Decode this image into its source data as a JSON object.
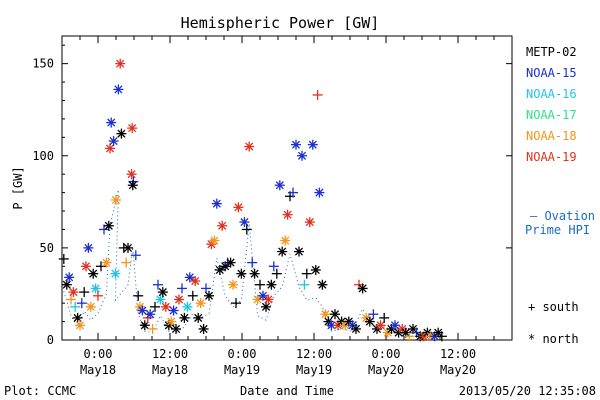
{
  "chart_data": {
    "type": "scatter",
    "title": "Hemispheric Power [GW]",
    "ylabel": "P [GW]",
    "xlabel": "Date and Time",
    "x_unit": "hours since 2013-05-17 00:00 UT",
    "xlim": [
      18,
      93
    ],
    "ylim": [
      0,
      165
    ],
    "yticks": [
      0,
      50,
      100,
      150
    ],
    "xticks": [
      {
        "x": 24,
        "line1": "0:00",
        "line2": "May18"
      },
      {
        "x": 36,
        "line1": "12:00",
        "line2": "May18"
      },
      {
        "x": 48,
        "line1": "0:00",
        "line2": "May19"
      },
      {
        "x": 60,
        "line1": "12:00",
        "line2": "May19"
      },
      {
        "x": 72,
        "line1": "0:00",
        "line2": "May20"
      },
      {
        "x": 84,
        "line1": "12:00",
        "line2": "May20"
      }
    ],
    "legend_position": "right",
    "series": [
      {
        "name": "METP-02",
        "color": "#000000"
      },
      {
        "name": "NOAA-15",
        "color": "#1a2fd0"
      },
      {
        "name": "NOAA-16",
        "color": "#22c4e6"
      },
      {
        "name": "NOAA-17",
        "color": "#2ee08a"
      },
      {
        "name": "NOAA-18",
        "color": "#f0961e"
      },
      {
        "name": "NOAA-19",
        "color": "#e0321e"
      }
    ],
    "ovation": {
      "label1": "— Ovation",
      "label2": "Prime HPI",
      "color": "#1a6cc8"
    },
    "markers": {
      "south": "+ south",
      "north": "* north"
    },
    "points": [
      {
        "s": 0,
        "m": "+",
        "x": 18.3,
        "y": 44
      },
      {
        "s": 0,
        "m": "*",
        "x": 18.8,
        "y": 30
      },
      {
        "s": 1,
        "m": "*",
        "x": 19.2,
        "y": 34
      },
      {
        "s": 4,
        "m": "+",
        "x": 19.5,
        "y": 22
      },
      {
        "s": 5,
        "m": "*",
        "x": 19.9,
        "y": 26
      },
      {
        "s": 2,
        "m": "+",
        "x": 20.2,
        "y": 18
      },
      {
        "s": 0,
        "m": "*",
        "x": 20.6,
        "y": 12
      },
      {
        "s": 4,
        "m": "*",
        "x": 21.0,
        "y": 8
      },
      {
        "s": 1,
        "m": "+",
        "x": 21.3,
        "y": 20
      },
      {
        "s": 0,
        "m": "+",
        "x": 21.7,
        "y": 26
      },
      {
        "s": 5,
        "m": "*",
        "x": 22.0,
        "y": 40
      },
      {
        "s": 1,
        "m": "*",
        "x": 22.4,
        "y": 50
      },
      {
        "s": 4,
        "m": "*",
        "x": 22.8,
        "y": 18
      },
      {
        "s": 0,
        "m": "*",
        "x": 23.2,
        "y": 36
      },
      {
        "s": 2,
        "m": "*",
        "x": 23.6,
        "y": 28
      },
      {
        "s": 5,
        "m": "+",
        "x": 24.0,
        "y": 24
      },
      {
        "s": 0,
        "m": "+",
        "x": 24.5,
        "y": 40
      },
      {
        "s": 1,
        "m": "+",
        "x": 25.0,
        "y": 60
      },
      {
        "s": 4,
        "m": "*",
        "x": 25.4,
        "y": 42
      },
      {
        "s": 0,
        "m": "*",
        "x": 25.8,
        "y": 62
      },
      {
        "s": 1,
        "m": "*",
        "x": 26.2,
        "y": 118
      },
      {
        "s": 5,
        "m": "*",
        "x": 26.0,
        "y": 104
      },
      {
        "s": 1,
        "m": "*",
        "x": 26.6,
        "y": 108
      },
      {
        "s": 4,
        "m": "*",
        "x": 27.0,
        "y": 76
      },
      {
        "s": 1,
        "m": "*",
        "x": 27.4,
        "y": 136
      },
      {
        "s": 5,
        "m": "*",
        "x": 27.7,
        "y": 150
      },
      {
        "s": 0,
        "m": "*",
        "x": 27.9,
        "y": 112
      },
      {
        "s": 2,
        "m": "*",
        "x": 26.9,
        "y": 36
      },
      {
        "s": 0,
        "m": "+",
        "x": 28.3,
        "y": 50
      },
      {
        "s": 4,
        "m": "+",
        "x": 28.7,
        "y": 42
      },
      {
        "s": 0,
        "m": "*",
        "x": 29.0,
        "y": 50
      },
      {
        "s": 5,
        "m": "*",
        "x": 29.6,
        "y": 90
      },
      {
        "s": 1,
        "m": "+",
        "x": 29.9,
        "y": 86
      },
      {
        "s": 0,
        "m": "*",
        "x": 29.8,
        "y": 84
      },
      {
        "s": 5,
        "m": "*",
        "x": 29.7,
        "y": 115
      },
      {
        "s": 1,
        "m": "+",
        "x": 30.3,
        "y": 46
      },
      {
        "s": 0,
        "m": "+",
        "x": 30.7,
        "y": 24
      },
      {
        "s": 4,
        "m": "*",
        "x": 31.0,
        "y": 18
      },
      {
        "s": 1,
        "m": "*",
        "x": 31.4,
        "y": 16
      },
      {
        "s": 0,
        "m": "*",
        "x": 31.8,
        "y": 8
      },
      {
        "s": 5,
        "m": "+",
        "x": 32.3,
        "y": 12
      },
      {
        "s": 1,
        "m": "*",
        "x": 32.7,
        "y": 14
      },
      {
        "s": 4,
        "m": "+",
        "x": 33.1,
        "y": 6
      },
      {
        "s": 0,
        "m": "+",
        "x": 33.5,
        "y": 18
      },
      {
        "s": 1,
        "m": "+",
        "x": 34.0,
        "y": 30
      },
      {
        "s": 2,
        "m": "*",
        "x": 34.4,
        "y": 22
      },
      {
        "s": 0,
        "m": "*",
        "x": 34.8,
        "y": 26
      },
      {
        "s": 5,
        "m": "*",
        "x": 35.3,
        "y": 18
      },
      {
        "s": 0,
        "m": "*",
        "x": 35.8,
        "y": 8
      },
      {
        "s": 4,
        "m": "*",
        "x": 36.2,
        "y": 10
      },
      {
        "s": 1,
        "m": "*",
        "x": 36.6,
        "y": 16
      },
      {
        "s": 0,
        "m": "*",
        "x": 37.0,
        "y": 6
      },
      {
        "s": 5,
        "m": "*",
        "x": 37.5,
        "y": 22
      },
      {
        "s": 1,
        "m": "+",
        "x": 38.0,
        "y": 28
      },
      {
        "s": 0,
        "m": "*",
        "x": 38.4,
        "y": 12
      },
      {
        "s": 2,
        "m": "*",
        "x": 38.9,
        "y": 18
      },
      {
        "s": 1,
        "m": "*",
        "x": 39.3,
        "y": 34
      },
      {
        "s": 0,
        "m": "+",
        "x": 39.8,
        "y": 24
      },
      {
        "s": 5,
        "m": "*",
        "x": 40.2,
        "y": 32
      },
      {
        "s": 0,
        "m": "*",
        "x": 40.7,
        "y": 12
      },
      {
        "s": 4,
        "m": "*",
        "x": 41.1,
        "y": 20
      },
      {
        "s": 0,
        "m": "*",
        "x": 41.6,
        "y": 6
      },
      {
        "s": 1,
        "m": "+",
        "x": 42.0,
        "y": 28
      },
      {
        "s": 0,
        "m": "*",
        "x": 42.5,
        "y": 24
      },
      {
        "s": 5,
        "m": "*",
        "x": 42.9,
        "y": 52
      },
      {
        "s": 4,
        "m": "*",
        "x": 43.4,
        "y": 54
      },
      {
        "s": 1,
        "m": "*",
        "x": 43.8,
        "y": 74
      },
      {
        "s": 0,
        "m": "*",
        "x": 44.3,
        "y": 38
      },
      {
        "s": 5,
        "m": "*",
        "x": 44.7,
        "y": 62
      },
      {
        "s": 0,
        "m": "*",
        "x": 45.2,
        "y": 40
      },
      {
        "s": 1,
        "m": "+",
        "x": 45.6,
        "y": 42
      },
      {
        "s": 0,
        "m": "*",
        "x": 46.1,
        "y": 42
      },
      {
        "s": 4,
        "m": "*",
        "x": 46.5,
        "y": 30
      },
      {
        "s": 0,
        "m": "+",
        "x": 47.0,
        "y": 20
      },
      {
        "s": 5,
        "m": "*",
        "x": 47.4,
        "y": 72
      },
      {
        "s": 0,
        "m": "*",
        "x": 47.9,
        "y": 36
      },
      {
        "s": 1,
        "m": "*",
        "x": 48.4,
        "y": 64
      },
      {
        "s": 0,
        "m": "+",
        "x": 48.8,
        "y": 60
      },
      {
        "s": 5,
        "m": "*",
        "x": 49.2,
        "y": 105
      },
      {
        "s": 1,
        "m": "+",
        "x": 49.7,
        "y": 42
      },
      {
        "s": 0,
        "m": "*",
        "x": 50.1,
        "y": 36
      },
      {
        "s": 4,
        "m": "*",
        "x": 50.6,
        "y": 22
      },
      {
        "s": 0,
        "m": "+",
        "x": 51.0,
        "y": 30
      },
      {
        "s": 1,
        "m": "*",
        "x": 51.5,
        "y": 24
      },
      {
        "s": 0,
        "m": "*",
        "x": 52.0,
        "y": 18
      },
      {
        "s": 5,
        "m": "*",
        "x": 52.4,
        "y": 22
      },
      {
        "s": 0,
        "m": "*",
        "x": 52.9,
        "y": 30
      },
      {
        "s": 1,
        "m": "+",
        "x": 53.3,
        "y": 40
      },
      {
        "s": 0,
        "m": "+",
        "x": 53.8,
        "y": 36
      },
      {
        "s": 1,
        "m": "*",
        "x": 54.3,
        "y": 84
      },
      {
        "s": 0,
        "m": "*",
        "x": 54.7,
        "y": 48
      },
      {
        "s": 4,
        "m": "*",
        "x": 55.2,
        "y": 54
      },
      {
        "s": 5,
        "m": "*",
        "x": 55.6,
        "y": 68
      },
      {
        "s": 0,
        "m": "+",
        "x": 56.0,
        "y": 78
      },
      {
        "s": 1,
        "m": "+",
        "x": 56.5,
        "y": 80
      },
      {
        "s": 1,
        "m": "*",
        "x": 57.0,
        "y": 106
      },
      {
        "s": 0,
        "m": "*",
        "x": 57.5,
        "y": 48
      },
      {
        "s": 1,
        "m": "*",
        "x": 58.0,
        "y": 100
      },
      {
        "s": 2,
        "m": "+",
        "x": 58.4,
        "y": 30
      },
      {
        "s": 0,
        "m": "+",
        "x": 58.8,
        "y": 36
      },
      {
        "s": 5,
        "m": "*",
        "x": 59.3,
        "y": 64
      },
      {
        "s": 1,
        "m": "*",
        "x": 59.8,
        "y": 106
      },
      {
        "s": 0,
        "m": "*",
        "x": 60.3,
        "y": 38
      },
      {
        "s": 1,
        "m": "*",
        "x": 60.9,
        "y": 80
      },
      {
        "s": 5,
        "m": "+",
        "x": 60.6,
        "y": 133
      },
      {
        "s": 0,
        "m": "*",
        "x": 61.4,
        "y": 30
      },
      {
        "s": 4,
        "m": "*",
        "x": 61.9,
        "y": 14
      },
      {
        "s": 0,
        "m": "*",
        "x": 62.4,
        "y": 10
      },
      {
        "s": 1,
        "m": "*",
        "x": 62.9,
        "y": 8
      },
      {
        "s": 0,
        "m": "*",
        "x": 63.5,
        "y": 14
      },
      {
        "s": 5,
        "m": "*",
        "x": 64.0,
        "y": 8
      },
      {
        "s": 0,
        "m": "*",
        "x": 64.6,
        "y": 10
      },
      {
        "s": 4,
        "m": "*",
        "x": 65.2,
        "y": 8
      },
      {
        "s": 0,
        "m": "*",
        "x": 65.8,
        "y": 10
      },
      {
        "s": 1,
        "m": "*",
        "x": 66.4,
        "y": 8
      },
      {
        "s": 0,
        "m": "*",
        "x": 67.0,
        "y": 6
      },
      {
        "s": 5,
        "m": "+",
        "x": 67.5,
        "y": 30
      },
      {
        "s": 0,
        "m": "*",
        "x": 68.1,
        "y": 28
      },
      {
        "s": 4,
        "m": "*",
        "x": 68.7,
        "y": 12
      },
      {
        "s": 0,
        "m": "*",
        "x": 69.3,
        "y": 10
      },
      {
        "s": 1,
        "m": "+",
        "x": 69.9,
        "y": 14
      },
      {
        "s": 0,
        "m": "*",
        "x": 70.5,
        "y": 6
      },
      {
        "s": 5,
        "m": "*",
        "x": 71.1,
        "y": 8
      },
      {
        "s": 0,
        "m": "+",
        "x": 71.7,
        "y": 12
      },
      {
        "s": 4,
        "m": "*",
        "x": 72.3,
        "y": 4
      },
      {
        "s": 0,
        "m": "*",
        "x": 72.9,
        "y": 6
      },
      {
        "s": 1,
        "m": "*",
        "x": 73.5,
        "y": 8
      },
      {
        "s": 0,
        "m": "*",
        "x": 74.1,
        "y": 4
      },
      {
        "s": 5,
        "m": "*",
        "x": 74.7,
        "y": 6
      },
      {
        "s": 0,
        "m": "*",
        "x": 75.3,
        "y": 4
      },
      {
        "s": 4,
        "m": "+",
        "x": 75.9,
        "y": 2
      },
      {
        "s": 0,
        "m": "*",
        "x": 76.5,
        "y": 6
      },
      {
        "s": 1,
        "m": "+",
        "x": 77.1,
        "y": 4
      },
      {
        "s": 0,
        "m": "*",
        "x": 77.7,
        "y": 2
      },
      {
        "s": 5,
        "m": "*",
        "x": 78.3,
        "y": 2
      },
      {
        "s": 0,
        "m": "*",
        "x": 78.9,
        "y": 4
      },
      {
        "s": 4,
        "m": "*",
        "x": 79.5,
        "y": 2
      },
      {
        "s": 1,
        "m": "*",
        "x": 80.1,
        "y": 2
      },
      {
        "s": 0,
        "m": "*",
        "x": 80.7,
        "y": 4
      },
      {
        "s": 0,
        "m": "+",
        "x": 81.3,
        "y": 2
      }
    ]
  },
  "footer": {
    "plot": "Plot: CCMC",
    "xlabel": "Date and Time",
    "timestamp": "2013/05/20 12:35:08"
  }
}
